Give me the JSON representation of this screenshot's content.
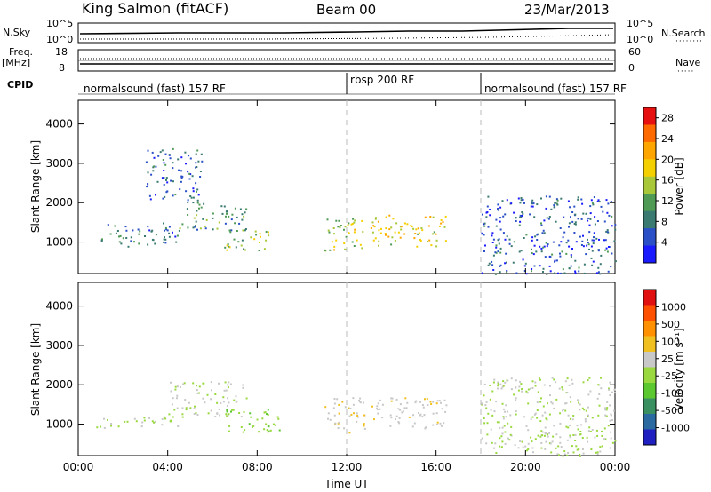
{
  "header": {
    "station": "King Salmon (fitACF)",
    "beam": "Beam 00",
    "date": "23/Mar/2013"
  },
  "aux_panels": {
    "nsky_label": "N.Sky",
    "nsearch_label": "N.Search",
    "nsky_ticks": [
      "10^5",
      "10^0"
    ],
    "nsearch_ticks": [
      "10^5",
      "10^0"
    ],
    "freq_label_1": "Freq.",
    "freq_label_2": "[MHz]",
    "freq_ticks": [
      "18",
      "8"
    ],
    "nave_label": "Nave",
    "nave_ticks": [
      "60",
      "0"
    ],
    "cpid_label": "CPID",
    "cpid_segments": [
      {
        "label": "normalsound (fast) 157 RF",
        "start_hour": 0,
        "end_hour": 12
      },
      {
        "label": "rbsp 200 RF",
        "start_hour": 12,
        "end_hour": 18
      },
      {
        "label": "normalsound (fast) 157 RF",
        "start_hour": 18,
        "end_hour": 24
      }
    ]
  },
  "chart_data": [
    {
      "type": "heatmap",
      "panel": "power",
      "ylabel": "Slant Range [km]",
      "xlabel": "Time UT",
      "xlim": [
        0,
        24
      ],
      "ylim": [
        200,
        4600
      ],
      "yticks": [
        "1000",
        "2000",
        "3000",
        "4000"
      ],
      "xticks": [
        "00:00",
        "04:00",
        "08:00",
        "12:00",
        "16:00",
        "20:00",
        "00:00"
      ],
      "colorbar": {
        "label": "Power [dB]",
        "range": [
          0,
          30
        ],
        "ticks": [
          "4",
          "8",
          "12",
          "16",
          "20",
          "24",
          "28"
        ],
        "colors": [
          "#1a1aff",
          "#2a4fc6",
          "#3a7a70",
          "#4f9a55",
          "#a8c83a",
          "#f5d000",
          "#ffa500",
          "#ff6a00",
          "#e61010"
        ]
      },
      "regions": [
        {
          "t0": 1.0,
          "t1": 4.5,
          "r0": 900,
          "r1": 1500,
          "power": 8
        },
        {
          "t0": 4.5,
          "t1": 7.5,
          "r0": 1300,
          "r1": 2000,
          "power": 10
        },
        {
          "t0": 6.5,
          "t1": 8.5,
          "r0": 800,
          "r1": 1400,
          "power": 14
        },
        {
          "t0": 3.0,
          "t1": 5.5,
          "r0": 2000,
          "r1": 3400,
          "power": 6
        },
        {
          "t0": 11.0,
          "t1": 12.8,
          "r0": 800,
          "r1": 1700,
          "power": 16
        },
        {
          "t0": 13.0,
          "t1": 16.5,
          "r0": 900,
          "r1": 1700,
          "power": 18
        },
        {
          "t0": 18.0,
          "t1": 24.0,
          "r0": 200,
          "r1": 2200,
          "power": 6
        }
      ]
    },
    {
      "type": "heatmap",
      "panel": "velocity",
      "ylabel": "Slant Range [km]",
      "xlabel": "Time UT",
      "xlim": [
        0,
        24
      ],
      "ylim": [
        200,
        4600
      ],
      "yticks": [
        "1000",
        "2000",
        "3000",
        "4000"
      ],
      "xticks": [
        "00:00",
        "04:00",
        "08:00",
        "12:00",
        "16:00",
        "20:00",
        "00:00"
      ],
      "colorbar": {
        "label": "Velocity [m s⁻¹]",
        "range": [
          -1200,
          1200
        ],
        "ticks": [
          "1000",
          "500",
          "100",
          "25",
          "-25",
          "-100",
          "-500",
          "-1000"
        ],
        "colors": [
          "#2020c0",
          "#2a6aa0",
          "#3a9060",
          "#5cc830",
          "#9ad840",
          "#c8c8c8",
          "#f0c020",
          "#ff9000",
          "#ff5000",
          "#e01010"
        ]
      },
      "regions": [
        {
          "t0": 0.8,
          "t1": 4.5,
          "r0": 900,
          "r1": 1200,
          "velocity": 0
        },
        {
          "t0": 4.0,
          "t1": 7.5,
          "r0": 1200,
          "r1": 2100,
          "velocity": 0
        },
        {
          "t0": 6.5,
          "t1": 9.0,
          "r0": 800,
          "r1": 1400,
          "velocity": -150
        },
        {
          "t0": 11.0,
          "t1": 12.8,
          "r0": 800,
          "r1": 1700,
          "velocity": 150
        },
        {
          "t0": 13.0,
          "t1": 16.5,
          "r0": 900,
          "r1": 1700,
          "velocity": 150
        },
        {
          "t0": 18.0,
          "t1": 24.0,
          "r0": 200,
          "r1": 2200,
          "velocity": 0
        }
      ]
    }
  ]
}
